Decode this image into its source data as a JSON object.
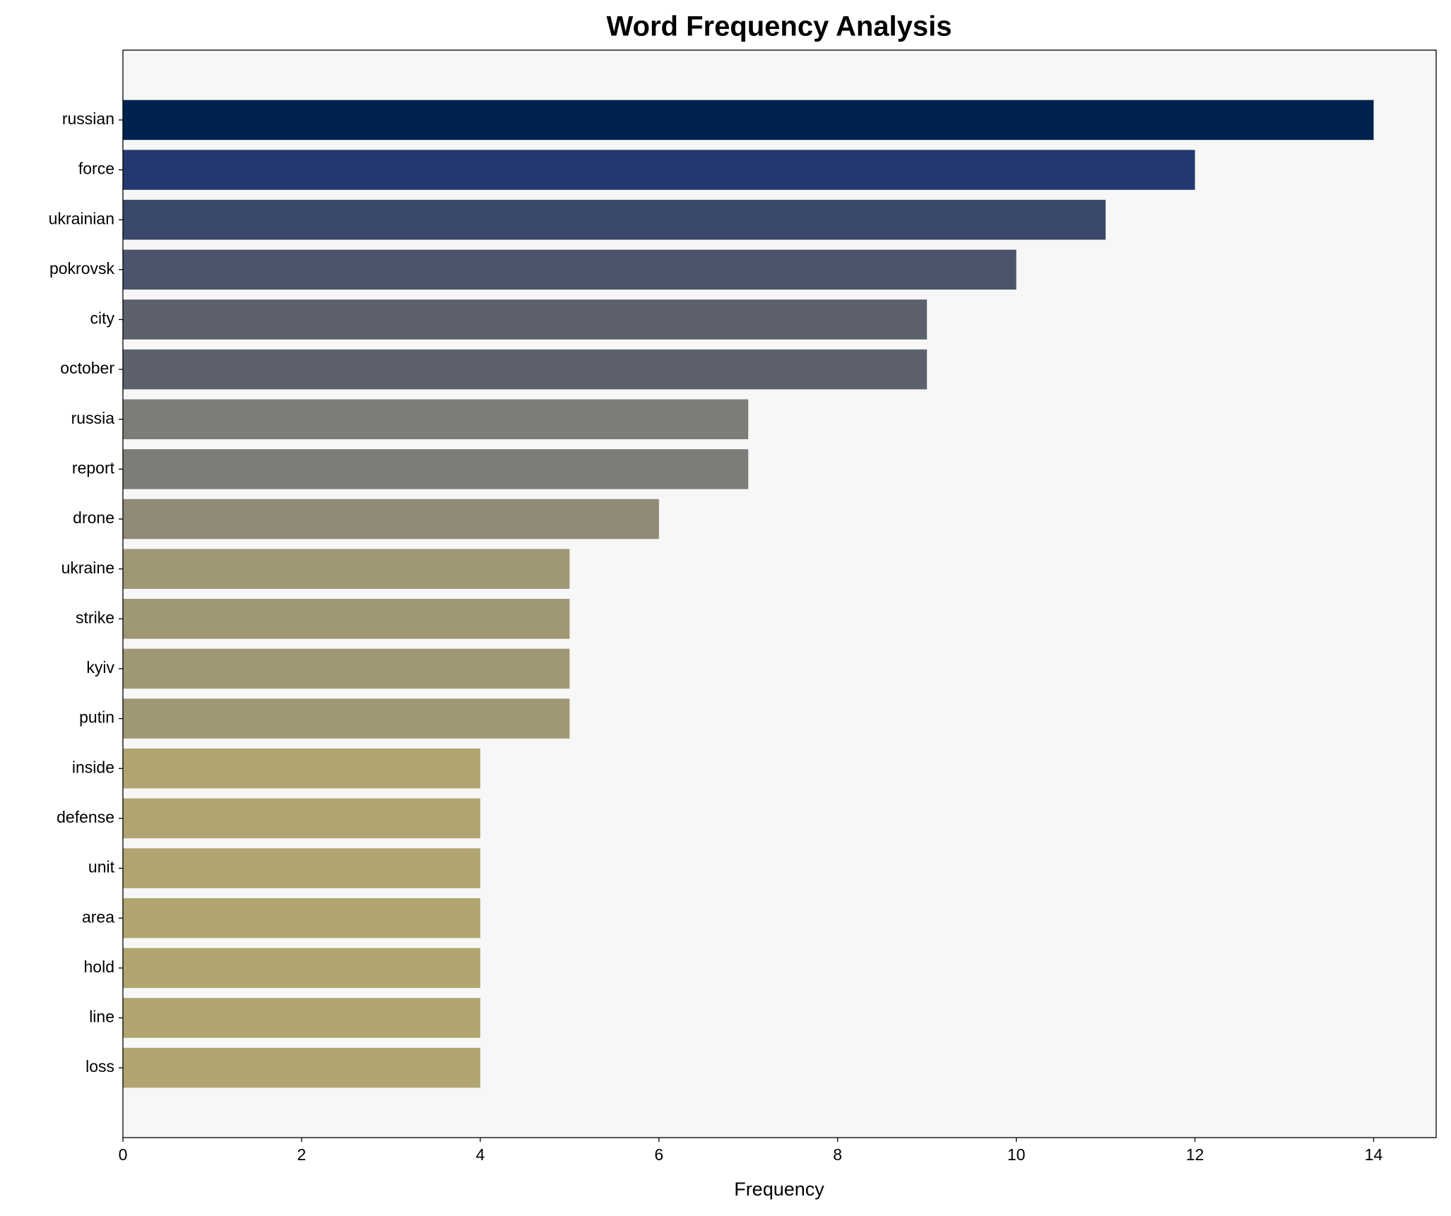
{
  "chart_data": {
    "type": "barh",
    "title": "Word Frequency Analysis",
    "xlabel": "Frequency",
    "categories": [
      "russian",
      "force",
      "ukrainian",
      "pokrovsk",
      "city",
      "october",
      "russia",
      "report",
      "drone",
      "ukraine",
      "strike",
      "kyiv",
      "putin",
      "inside",
      "defense",
      "unit",
      "area",
      "hold",
      "line",
      "loss"
    ],
    "values": [
      14,
      12,
      11,
      10,
      9,
      9,
      7,
      7,
      6,
      5,
      5,
      5,
      5,
      4,
      4,
      4,
      4,
      4,
      4,
      4
    ],
    "colors": [
      "#00224e",
      "#23386e",
      "#3a486b",
      "#4c546c",
      "#5c616d",
      "#5c616d",
      "#7d7c78",
      "#7d7c78",
      "#918a78",
      "#a09775",
      "#a09775",
      "#a09775",
      "#a09775",
      "#b0a570",
      "#b0a570",
      "#b0a570",
      "#b0a570",
      "#b0a570",
      "#b0a570",
      "#b0a570"
    ],
    "xlim": [
      0,
      14.7
    ],
    "xticks": [
      0,
      2,
      4,
      6,
      8,
      10,
      12,
      14
    ],
    "background": "#f7f7f7"
  }
}
